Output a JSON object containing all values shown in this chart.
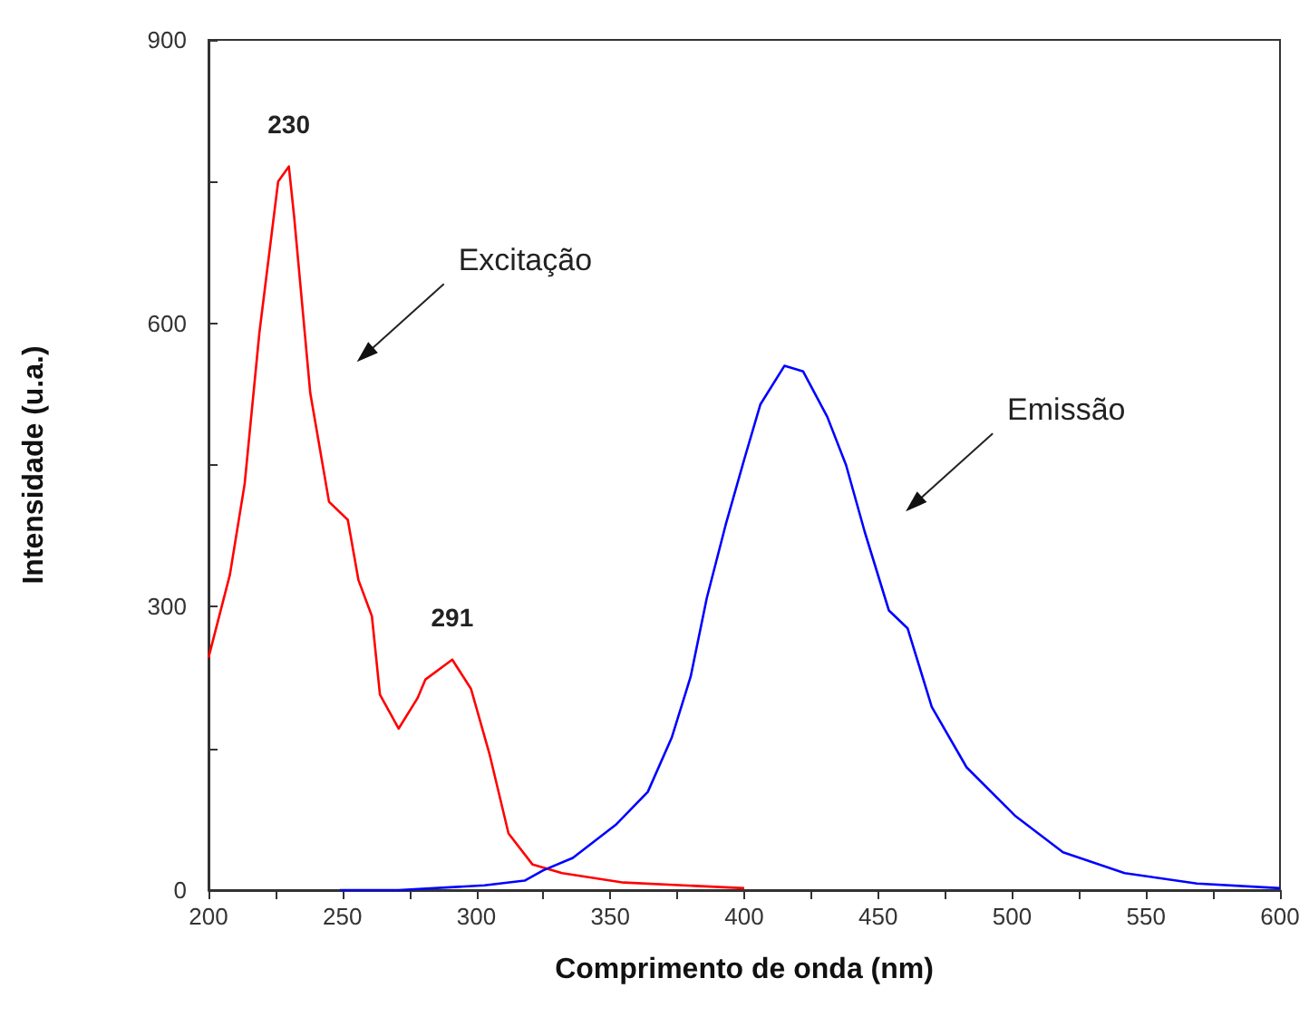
{
  "chart_data": {
    "type": "line",
    "xlabel": "Comprimento de onda (nm)",
    "ylabel": "Intensidade (u.a.)",
    "xlim": [
      200,
      600
    ],
    "xticks": [
      200,
      {
        "value": 225,
        "label": null
      },
      250,
      {
        "value": 275,
        "label": null
      },
      300,
      {
        "value": 325,
        "label": null
      },
      350,
      {
        "value": 375,
        "label": null
      },
      400,
      {
        "value": 425,
        "label": null
      },
      450,
      {
        "value": 475,
        "label": null
      },
      500,
      {
        "value": 525,
        "label": null
      },
      550,
      {
        "value": 575,
        "label": null
      },
      600
    ],
    "ylim": [
      0,
      900
    ],
    "yticks": [
      0,
      {
        "value": 150,
        "label": null
      },
      300,
      {
        "value": 450,
        "label": null
      },
      600,
      {
        "value": 750,
        "label": null
      },
      900
    ],
    "grid": false,
    "marker": "none",
    "line_style": "solid",
    "annotations": [
      {
        "text": "230",
        "x": 230,
        "y": 766
      },
      {
        "text": "291",
        "x": 291,
        "y": 244
      },
      "Excitação",
      "Emissão"
    ],
    "series": [
      {
        "color": "#ff0000",
        "x": [
          200,
          208,
          213.5,
          219,
          226,
          230,
          232,
          238,
          245,
          252,
          256,
          261,
          264,
          271,
          278,
          281,
          291,
          298,
          305,
          312,
          321,
          332,
          355,
          400
        ],
        "values": [
          246,
          334,
          430,
          590,
          750,
          766,
          712,
          526,
          411,
          392,
          328,
          290,
          207,
          171,
          203,
          223,
          244,
          213,
          143,
          60,
          27,
          18,
          8,
          2
        ]
      },
      {
        "color": "#0000ff",
        "x": [
          249,
          271,
          303,
          318,
          325,
          336,
          352,
          364,
          373,
          380,
          386,
          393,
          400,
          406,
          415,
          422,
          431,
          438,
          445,
          454,
          461,
          470,
          483,
          501,
          519,
          542,
          569,
          600
        ],
        "values": [
          0,
          0,
          5,
          10,
          21,
          34,
          69,
          104,
          162,
          226,
          309,
          386,
          456,
          514,
          555,
          549,
          501,
          450,
          379,
          296,
          277,
          194,
          130,
          79,
          40,
          18,
          7,
          2
        ]
      }
    ]
  }
}
